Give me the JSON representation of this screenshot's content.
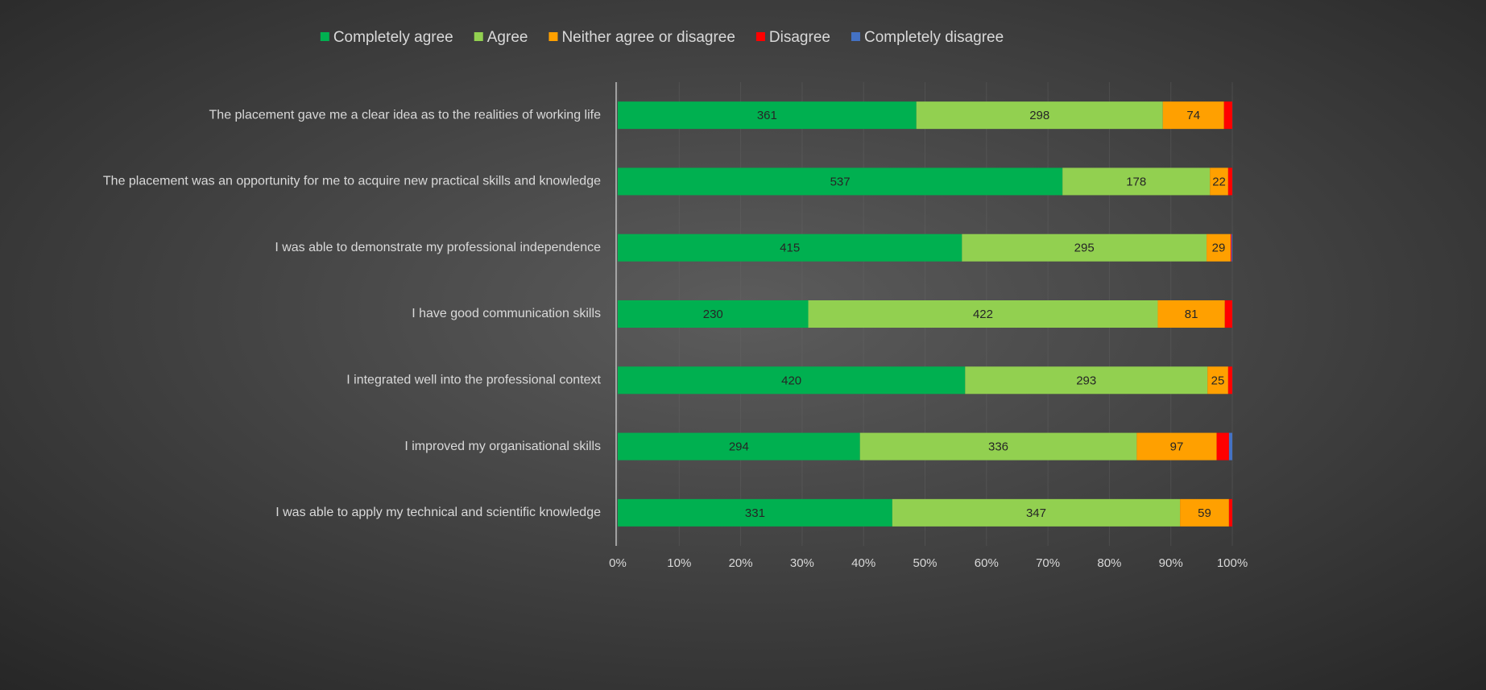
{
  "chart_data": {
    "type": "stacked_percent_barh",
    "categories": [
      "The placement gave me a clear idea as to the realities of working life",
      "The placement was an opportunity for me to acquire new practical skills and knowledge",
      "I was able to demonstrate my professional independence",
      "I have good communication skills",
      "I integrated well into the professional context",
      "I improved my organisational skills",
      "I was able to apply my technical and scientific knowledge"
    ],
    "series": [
      {
        "name": "Completely agree",
        "color": "#00b050",
        "show_labels": true,
        "values": [
          361,
          537,
          415,
          230,
          420,
          294,
          331
        ]
      },
      {
        "name": "Agree",
        "color": "#92d050",
        "show_labels": true,
        "values": [
          298,
          178,
          295,
          422,
          293,
          336,
          347
        ]
      },
      {
        "name": "Neither agree or disagree",
        "color": "#ffa000",
        "show_labels": true,
        "values": [
          74,
          22,
          29,
          81,
          25,
          97,
          59
        ]
      },
      {
        "name": "Disagree",
        "color": "#ff0000",
        "show_labels": false,
        "values": [
          10,
          5,
          1,
          9,
          5,
          15,
          4
        ]
      },
      {
        "name": "Completely disagree",
        "color": "#4472c4",
        "show_labels": false,
        "values": [
          0,
          0,
          1,
          0,
          0,
          4,
          0
        ]
      }
    ],
    "xlim": [
      0,
      100
    ],
    "xticks": [
      {
        "value": 0,
        "label": "0%"
      },
      {
        "value": 10,
        "label": "10%"
      },
      {
        "value": 20,
        "label": "20%"
      },
      {
        "value": 30,
        "label": "30%"
      },
      {
        "value": 40,
        "label": "40%"
      },
      {
        "value": 50,
        "label": "50%"
      },
      {
        "value": 60,
        "label": "60%"
      },
      {
        "value": 70,
        "label": "70%"
      },
      {
        "value": 80,
        "label": "80%"
      },
      {
        "value": 90,
        "label": "90%"
      },
      {
        "value": 100,
        "label": "100%"
      }
    ],
    "grid": true,
    "legend": "top"
  }
}
